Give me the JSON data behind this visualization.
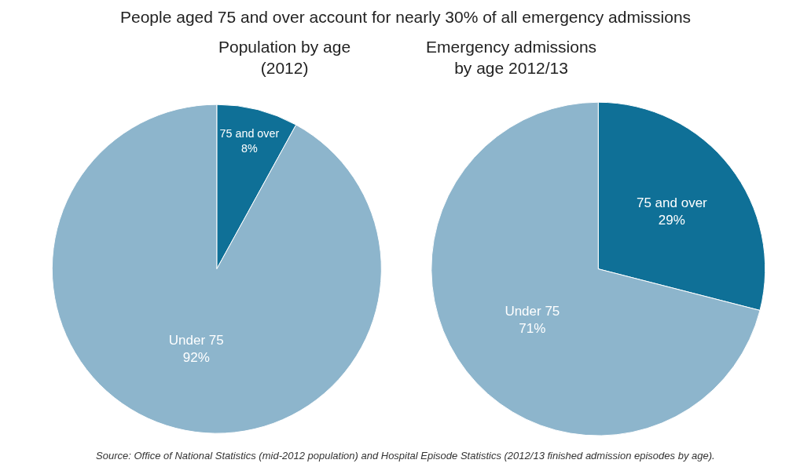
{
  "chart_data": [
    {
      "type": "pie",
      "title": "People aged 75 and over account for nearly 30% of all emergency admissions",
      "subtitle": "Population by age\n(2012)",
      "categories": [
        "75 and over",
        "Under 75"
      ],
      "values": [
        8,
        92
      ],
      "value_labels": [
        "8%",
        "92%"
      ],
      "colors": [
        "#0f7097",
        "#8db5cc"
      ]
    },
    {
      "type": "pie",
      "subtitle": "Emergency admissions\nby age 2012/13",
      "categories": [
        "75 and over",
        "Under 75"
      ],
      "values": [
        29,
        71
      ],
      "value_labels": [
        "29%",
        "71%"
      ],
      "colors": [
        "#0f7097",
        "#8db5cc"
      ],
      "annotations": [
        "Source: Office of National Statistics (mid-2012 population) and Hospital Episode Statistics (2012/13 finished admission episodes by age)."
      ]
    }
  ]
}
